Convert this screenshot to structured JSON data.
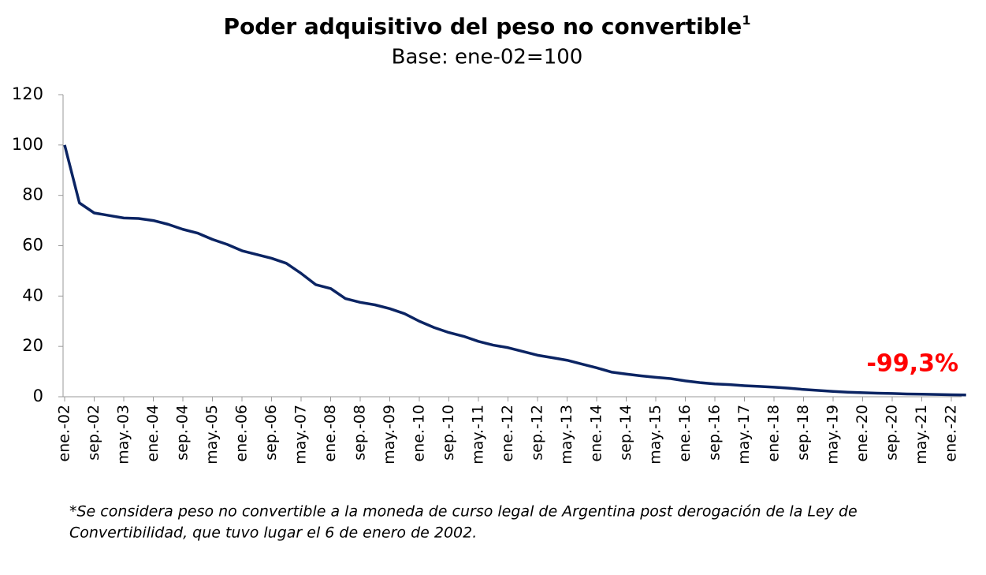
{
  "chart_data": {
    "type": "line",
    "title": "Poder adquisitivo del peso no convertible",
    "title_superscript": "1",
    "subtitle": "Base: ene-02=100",
    "annotation": "-99,3%",
    "footnote": [
      "*Se considera peso no convertible a la moneda de curso legal de  Argentina post derogación de la Ley de",
      "Convertibilidad, que tuvo lugar el 6 de enero de 2002."
    ],
    "categories": [
      "ene.-02",
      null,
      "sep.-02",
      null,
      "may.-03",
      null,
      "ene.-04",
      null,
      "sep.-04",
      null,
      "may.-05",
      null,
      "ene.-06",
      null,
      "sep.-06",
      null,
      "may.-07",
      null,
      "ene.-08",
      null,
      "sep.-08",
      null,
      "may.-09",
      null,
      "ene.-10",
      null,
      "sep.-10",
      null,
      "may.-11",
      null,
      "ene.-12",
      null,
      "sep.-12",
      null,
      "may.-13",
      null,
      "ene.-14",
      null,
      "sep.-14",
      null,
      "may.-15",
      null,
      "ene.-16",
      null,
      "sep.-16",
      null,
      "may.-17",
      null,
      "ene.-18",
      null,
      "sep.-18",
      null,
      "may.-19",
      null,
      "ene.-20",
      null,
      "sep.-20",
      null,
      "may.-21",
      null,
      "ene.-22",
      null
    ],
    "series": [
      {
        "color": "#0b2463",
        "values": [
          100,
          77,
          73,
          72,
          71,
          70.8,
          70,
          68.5,
          66.5,
          65,
          62.5,
          60.5,
          58,
          56.5,
          55,
          53,
          49,
          44.5,
          43,
          39,
          37.5,
          36.5,
          35,
          33,
          30,
          27.5,
          25.5,
          24,
          22,
          20.5,
          19.5,
          18,
          16.5,
          15.5,
          14.5,
          13,
          11.5,
          9.8,
          9,
          8.3,
          7.7,
          7.2,
          6.3,
          5.6,
          5.1,
          4.8,
          4.4,
          4.1,
          3.8,
          3.4,
          2.9,
          2.5,
          2.1,
          1.8,
          1.6,
          1.4,
          1.3,
          1.1,
          1.0,
          0.9,
          0.8,
          0.7
        ]
      }
    ],
    "annotation_color": "#ff0000",
    "ylim": [
      0,
      120
    ],
    "yticks": [
      0,
      20,
      40,
      60,
      80,
      100,
      120
    ]
  }
}
